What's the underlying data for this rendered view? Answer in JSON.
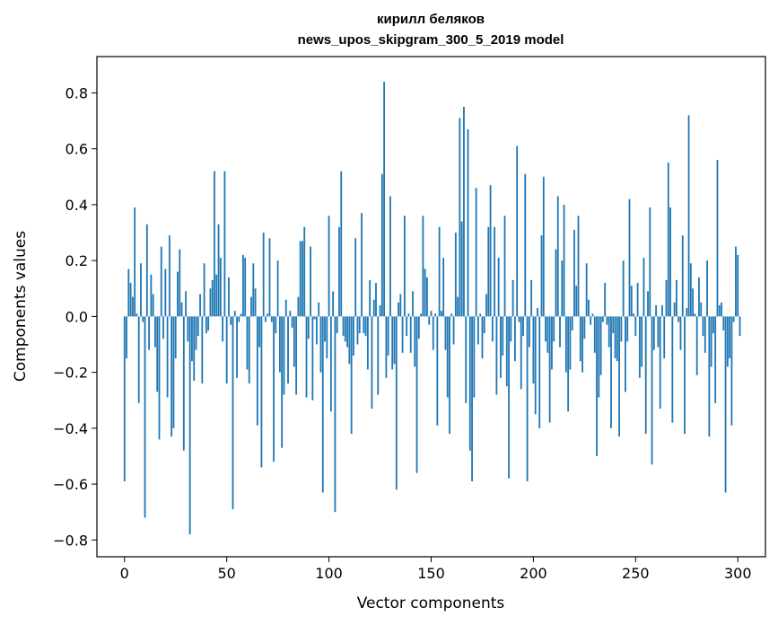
{
  "chart_data": {
    "type": "bar",
    "title": "кирилл беляков",
    "subtitle": "news_upos_skipgram_300_5_2019 model",
    "xlabel": "Vector components",
    "ylabel": "Components values",
    "xlim": [
      -13.5,
      313.5
    ],
    "ylim": [
      -0.86,
      0.93
    ],
    "xticks": [
      0,
      50,
      100,
      150,
      200,
      250,
      300
    ],
    "xtick_labels": [
      "0",
      "50",
      "100",
      "150",
      "200",
      "250",
      "300"
    ],
    "yticks": [
      -0.8,
      -0.6,
      -0.4,
      -0.2,
      0.0,
      0.2,
      0.4,
      0.6,
      0.8
    ],
    "ytick_labels": [
      "−0.8",
      "−0.6",
      "−0.4",
      "−0.2",
      "0.0",
      "0.2",
      "0.4",
      "0.6",
      "0.8"
    ],
    "bar_color": "#1f77b4",
    "grid": false,
    "values": [
      -0.59,
      -0.15,
      0.17,
      0.12,
      0.07,
      0.39,
      0.01,
      -0.31,
      0.19,
      -0.02,
      -0.72,
      0.33,
      -0.12,
      0.15,
      0.08,
      -0.11,
      -0.27,
      -0.44,
      0.25,
      -0.08,
      0.17,
      -0.29,
      0.29,
      -0.43,
      -0.4,
      -0.15,
      0.16,
      0.24,
      0.05,
      -0.48,
      0.09,
      -0.09,
      -0.78,
      -0.16,
      -0.23,
      -0.12,
      -0.07,
      0.08,
      -0.24,
      0.19,
      -0.06,
      -0.05,
      0.1,
      0.13,
      0.52,
      0.15,
      0.33,
      0.21,
      -0.09,
      0.52,
      -0.24,
      0.14,
      -0.03,
      -0.69,
      0.02,
      -0.22,
      -0.02,
      0.01,
      0.22,
      0.21,
      -0.19,
      -0.24,
      0.07,
      0.19,
      0.1,
      -0.39,
      -0.11,
      -0.54,
      0.3,
      -0.02,
      0.01,
      0.28,
      -0.02,
      -0.52,
      -0.06,
      0.2,
      -0.2,
      -0.47,
      -0.28,
      0.06,
      -0.24,
      0.02,
      -0.04,
      -0.18,
      -0.28,
      0.07,
      0.27,
      0.27,
      0.32,
      -0.29,
      -0.08,
      0.25,
      -0.3,
      -0.01,
      -0.1,
      0.05,
      -0.2,
      -0.63,
      -0.09,
      -0.15,
      0.36,
      -0.34,
      0.09,
      -0.7,
      -0.06,
      0.32,
      0.52,
      -0.07,
      -0.09,
      -0.11,
      -0.17,
      -0.42,
      -0.14,
      0.28,
      -0.1,
      -0.06,
      0.37,
      -0.06,
      -0.07,
      -0.19,
      0.13,
      -0.33,
      0.06,
      0.12,
      -0.28,
      0.04,
      0.51,
      0.84,
      -0.22,
      -0.14,
      0.43,
      -0.19,
      -0.17,
      -0.62,
      0.05,
      0.08,
      -0.13,
      0.36,
      -0.07,
      0.01,
      -0.13,
      0.09,
      -0.18,
      -0.56,
      -0.08,
      0.01,
      0.36,
      0.17,
      0.14,
      -0.03,
      0.02,
      -0.12,
      0.01,
      -0.39,
      0.32,
      0.02,
      0.21,
      -0.12,
      -0.29,
      -0.42,
      0.01,
      -0.1,
      0.3,
      0.07,
      0.71,
      0.34,
      0.75,
      -0.31,
      0.67,
      -0.48,
      -0.59,
      -0.29,
      0.46,
      -0.1,
      0.01,
      -0.15,
      -0.06,
      0.08,
      0.32,
      0.47,
      -0.09,
      0.32,
      -0.28,
      0.21,
      -0.22,
      -0.14,
      0.36,
      -0.25,
      -0.58,
      -0.09,
      0.13,
      -0.16,
      0.61,
      -0.02,
      -0.26,
      -0.07,
      0.51,
      -0.59,
      -0.11,
      0.13,
      -0.24,
      -0.35,
      0.03,
      -0.4,
      0.29,
      0.5,
      -0.09,
      -0.13,
      -0.38,
      -0.19,
      -0.09,
      0.24,
      0.43,
      -0.11,
      0.2,
      0.4,
      -0.2,
      -0.34,
      -0.19,
      -0.05,
      0.31,
      0.11,
      0.36,
      -0.16,
      -0.2,
      -0.08,
      0.19,
      0.06,
      -0.03,
      0.01,
      -0.13,
      -0.5,
      -0.29,
      -0.21,
      -0.02,
      0.12,
      -0.03,
      -0.11,
      -0.4,
      -0.06,
      -0.15,
      -0.16,
      -0.43,
      -0.09,
      0.2,
      -0.27,
      -0.09,
      0.42,
      0.11,
      0.01,
      -0.07,
      0.12,
      -0.22,
      -0.18,
      0.21,
      -0.42,
      0.09,
      0.39,
      -0.53,
      -0.12,
      0.04,
      -0.11,
      -0.33,
      0.04,
      -0.15,
      0.13,
      0.55,
      0.39,
      -0.38,
      0.05,
      0.13,
      -0.02,
      -0.12,
      0.29,
      -0.42,
      0.03,
      0.72,
      0.19,
      0.1,
      0.01,
      -0.21,
      0.14,
      0.05,
      -0.07,
      -0.13,
      0.2,
      -0.43,
      -0.18,
      -0.06,
      -0.31,
      0.56,
      0.04,
      0.05,
      -0.05,
      -0.63,
      -0.18,
      -0.15,
      -0.39,
      -0.02,
      0.25,
      0.22,
      -0.07
    ]
  }
}
